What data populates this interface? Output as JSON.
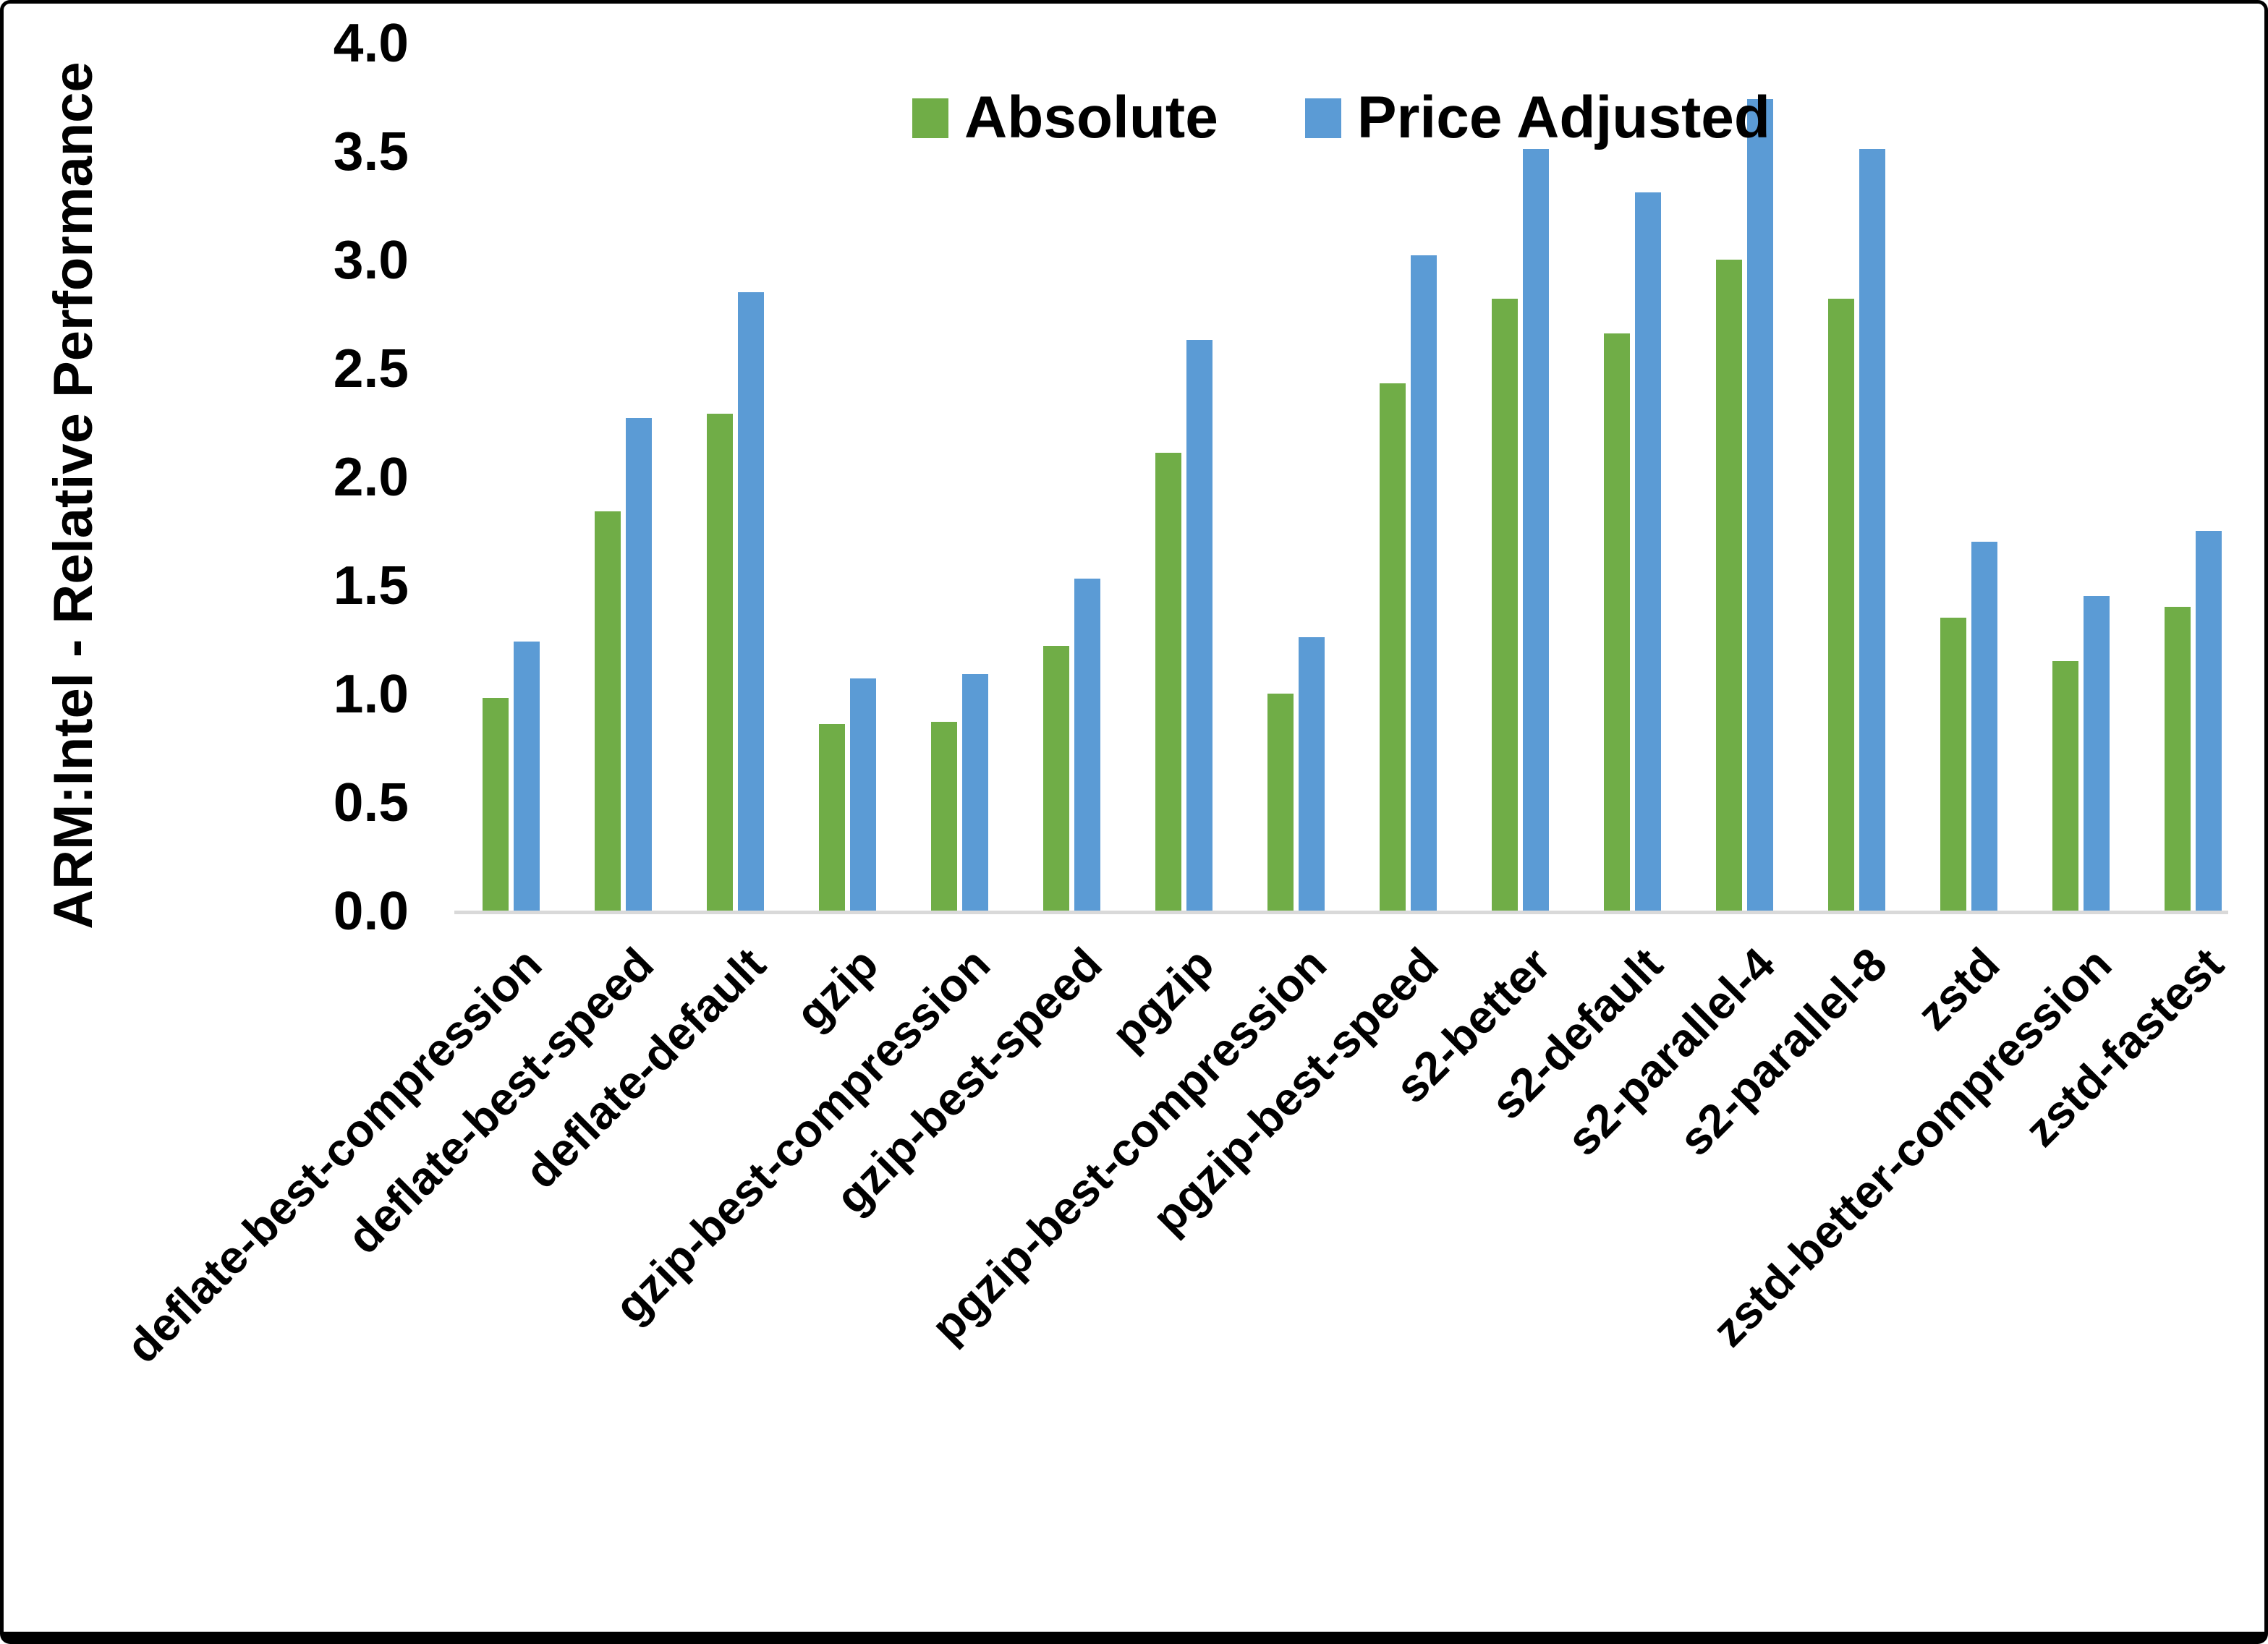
{
  "chart_data": {
    "type": "bar",
    "title": "",
    "ylabel": "ARM:Intel - Relative Performance",
    "xlabel": "",
    "ylim": [
      0.0,
      4.0
    ],
    "ytick_step": 0.5,
    "ytick_labels": [
      "0.0",
      "0.5",
      "1.0",
      "1.5",
      "2.0",
      "2.5",
      "3.0",
      "3.5",
      "4.0"
    ],
    "grid": false,
    "legend_position": "top-center",
    "categories": [
      "deflate-best-compression",
      "deflate-best-speed",
      "deflate-default",
      "gzip",
      "gzip-best-compression",
      "gzip-best-speed",
      "pgzip",
      "pgzip-best-compression",
      "pgzip-best-speed",
      "s2-better",
      "s2-default",
      "s2-parallel-4",
      "s2-parallel-8",
      "zstd",
      "zstd-better-compression",
      "zstd-fastest"
    ],
    "series": [
      {
        "name": "Absolute",
        "color": "#70AD47",
        "values": [
          0.98,
          1.84,
          2.29,
          0.86,
          0.87,
          1.22,
          2.11,
          1.0,
          2.43,
          2.82,
          2.66,
          3.0,
          2.82,
          1.35,
          1.15,
          1.4
        ]
      },
      {
        "name": "Price Adjusted",
        "color": "#5B9BD5",
        "values": [
          1.24,
          2.27,
          2.85,
          1.07,
          1.09,
          1.53,
          2.63,
          1.26,
          3.02,
          3.51,
          3.31,
          3.74,
          3.51,
          1.7,
          1.45,
          1.75
        ]
      }
    ]
  },
  "colors": {
    "background": "#FFFFFF",
    "frame": "#000000",
    "axis_line": "#D9D9D9",
    "text": "#000000",
    "series_absolute": "#70AD47",
    "series_price_adjusted": "#5B9BD5"
  }
}
